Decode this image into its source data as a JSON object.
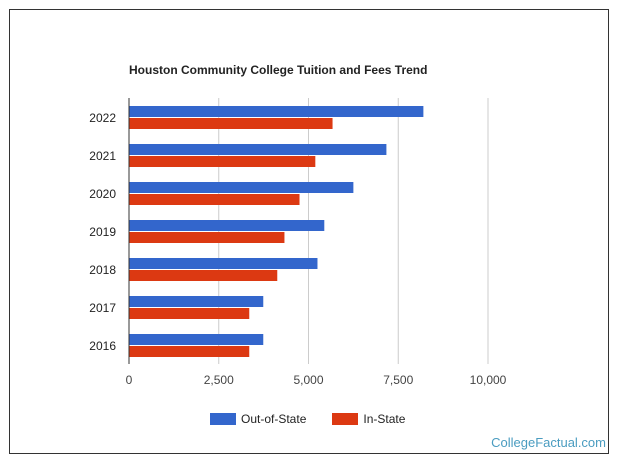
{
  "chart_data": {
    "type": "bar",
    "orientation": "horizontal",
    "title": "Houston Community College Tuition and Fees Trend",
    "categories": [
      "2022",
      "2021",
      "2020",
      "2019",
      "2018",
      "2017",
      "2016"
    ],
    "series": [
      {
        "name": "Out-of-State",
        "color": "#3366cc",
        "values": [
          8200,
          7170,
          6250,
          5440,
          5250,
          3740,
          3740
        ]
      },
      {
        "name": "In-State",
        "color": "#dc3912",
        "values": [
          5670,
          5190,
          4750,
          4330,
          4130,
          3350,
          3350
        ]
      }
    ],
    "xlim": [
      0,
      10000
    ],
    "xticks": [
      "0",
      "2,500",
      "5,000",
      "7,500",
      "10,000"
    ],
    "grid": true,
    "legend": "bottom"
  },
  "brand": "CollegeFactual.com"
}
